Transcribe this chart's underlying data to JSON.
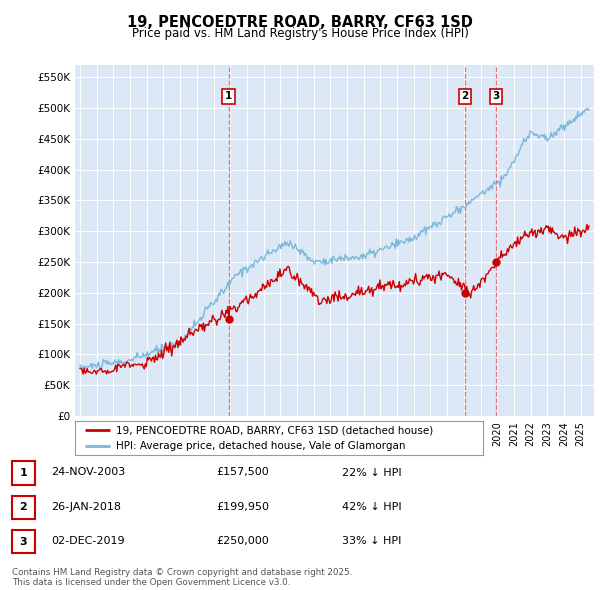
{
  "title": "19, PENCOEDTRE ROAD, BARRY, CF63 1SD",
  "subtitle": "Price paid vs. HM Land Registry's House Price Index (HPI)",
  "ylabel_ticks": [
    "£0",
    "£50K",
    "£100K",
    "£150K",
    "£200K",
    "£250K",
    "£300K",
    "£350K",
    "£400K",
    "£450K",
    "£500K",
    "£550K"
  ],
  "ytick_values": [
    0,
    50000,
    100000,
    150000,
    200000,
    250000,
    300000,
    350000,
    400000,
    450000,
    500000,
    550000
  ],
  "ylim": [
    0,
    570000
  ],
  "xlim_start": 1994.7,
  "xlim_end": 2025.8,
  "sale_dates": [
    2003.9,
    2018.08,
    2019.92
  ],
  "sale_prices": [
    157500,
    199950,
    250000
  ],
  "sale_labels": [
    "1",
    "2",
    "3"
  ],
  "hpi_color": "#7ab8d9",
  "price_color": "#cc0000",
  "dashed_line_color": "#e87070",
  "bg_color": "#ffffff",
  "plot_bg_color": "#dce8f5",
  "legend_entries": [
    "19, PENCOEDTRE ROAD, BARRY, CF63 1SD (detached house)",
    "HPI: Average price, detached house, Vale of Glamorgan"
  ],
  "table_data": [
    [
      "1",
      "24-NOV-2003",
      "£157,500",
      "22% ↓ HPI"
    ],
    [
      "2",
      "26-JAN-2018",
      "£199,950",
      "42% ↓ HPI"
    ],
    [
      "3",
      "02-DEC-2019",
      "£250,000",
      "33% ↓ HPI"
    ]
  ],
  "footer": "Contains HM Land Registry data © Crown copyright and database right 2025.\nThis data is licensed under the Open Government Licence v3.0."
}
